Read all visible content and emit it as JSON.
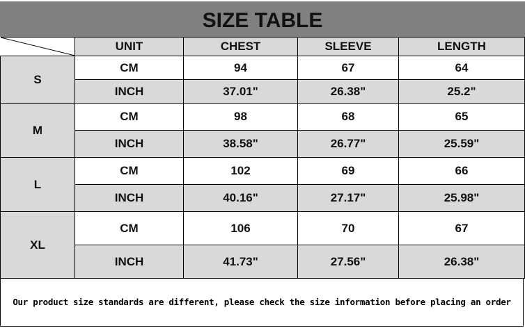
{
  "title": "SIZE TABLE",
  "headers": [
    "UNIT",
    "CHEST",
    "SLEEVE",
    "LENGTH"
  ],
  "rows": [
    {
      "size": "S",
      "cm": {
        "unit": "CM",
        "chest": "94",
        "sleeve": "67",
        "length": "64"
      },
      "inch": {
        "unit": "INCH",
        "chest": "37.01\"",
        "sleeve": "26.38\"",
        "length": "25.2\""
      }
    },
    {
      "size": "M",
      "cm": {
        "unit": "CM",
        "chest": "98",
        "sleeve": "68",
        "length": "65"
      },
      "inch": {
        "unit": "INCH",
        "chest": "38.58\"",
        "sleeve": "26.77\"",
        "length": "25.59\""
      }
    },
    {
      "size": "L",
      "cm": {
        "unit": "CM",
        "chest": "102",
        "sleeve": "69",
        "length": "66"
      },
      "inch": {
        "unit": "INCH",
        "chest": "40.16\"",
        "sleeve": "27.17\"",
        "length": "25.98\""
      }
    },
    {
      "size": "XL",
      "cm": {
        "unit": "CM",
        "chest": "106",
        "sleeve": "70",
        "length": "67"
      },
      "inch": {
        "unit": "INCH",
        "chest": "41.73\"",
        "sleeve": "27.56\"",
        "length": "26.38\""
      }
    }
  ],
  "note": "Our product size standards are different, please check the size information before placing an order",
  "colors": {
    "title_bg": "#808080",
    "cell_gray": "#d9d9d9"
  }
}
